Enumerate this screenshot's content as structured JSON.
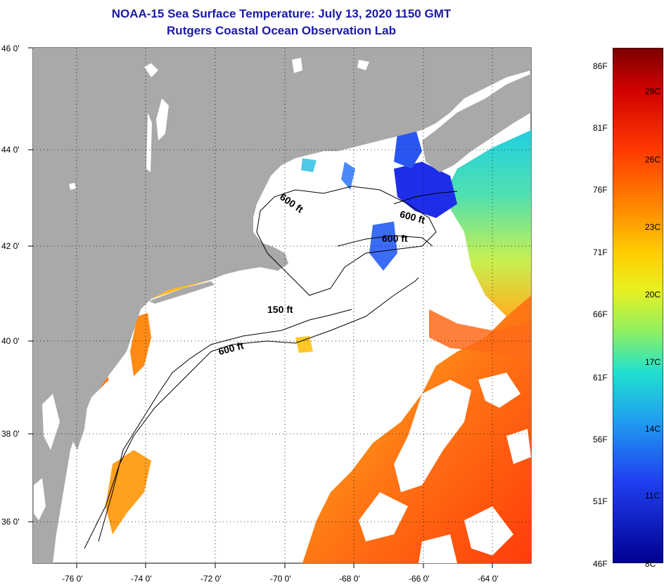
{
  "title": {
    "line1": "NOAA-15 Sea Surface Temperature:  July 13, 2020 1150 GMT",
    "line2": "Rutgers Coastal Ocean Observation Lab"
  },
  "axes": {
    "lat_labels": [
      "46 0'",
      "44 0'",
      "42 0'",
      "40 0'",
      "38 0'",
      "36 0'"
    ],
    "lon_labels": [
      "-76 0'",
      "-74 0'",
      "-72 0'",
      "-70 0'",
      "-68 0'",
      "-66 0'",
      "-64 0'"
    ]
  },
  "contours": {
    "label_600a": "600 ft",
    "label_600b": "600 ft",
    "label_600c": "600 ft",
    "label_600d": "600 ft",
    "label_150": "150 ft"
  },
  "colorbar": {
    "fahrenheit": [
      "86F",
      "81F",
      "76F",
      "71F",
      "66F",
      "61F",
      "56F",
      "51F",
      "46F"
    ],
    "celsius": [
      "29C",
      "26C",
      "23C",
      "20C",
      "17C",
      "14C",
      "11C",
      "8C"
    ]
  },
  "colors": {
    "land": "#a9a9a9",
    "cloud": "#ffffff",
    "title": "#1a1aa6",
    "warm_water": "#ff4a14",
    "cold_water": "#1e2ee8"
  }
}
